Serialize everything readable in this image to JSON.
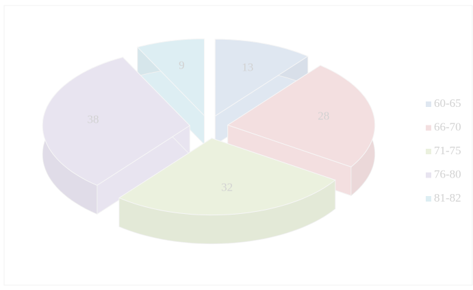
{
  "chart_data": {
    "type": "pie3d",
    "categories": [
      "60-65",
      "66-70",
      "71-75",
      "76-80",
      "81-82"
    ],
    "values": [
      13,
      28,
      32,
      38,
      9
    ],
    "colors": [
      "#dfe7f1",
      "#f3dfe0",
      "#ebf1de",
      "#e8e4f0",
      "#ddeef3"
    ],
    "legend": "right"
  }
}
